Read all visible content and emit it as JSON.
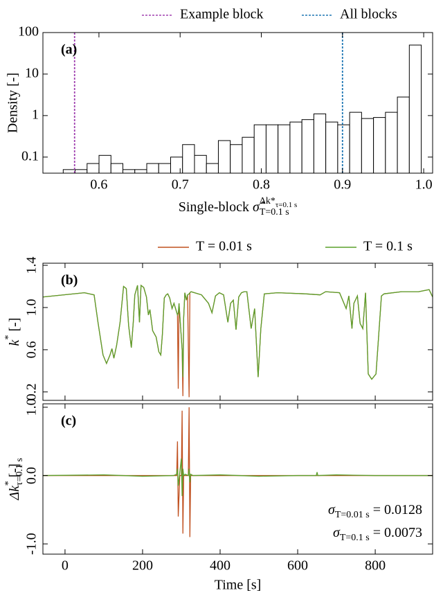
{
  "chart_data": [
    {
      "type": "histogram",
      "panel_label": "(a)",
      "xlabel": {
        "text": "Single-block",
        "symbol": "σ̂",
        "superscript": "Δk*",
        "superscript_subscript": "τ=0.1 s",
        "subscript": "T=0.1 s"
      },
      "ylabel": "Density [-]",
      "bins": [
        0.556,
        0.5707,
        0.5854,
        0.6001,
        0.6148,
        0.6295,
        0.6442,
        0.6589,
        0.6736,
        0.6883,
        0.703,
        0.7177,
        0.7324,
        0.7471,
        0.7618,
        0.7765,
        0.7912,
        0.8059,
        0.8206,
        0.8353,
        0.85,
        0.8647,
        0.8794,
        0.8941,
        0.9088,
        0.9235,
        0.9382,
        0.9529,
        0.9676,
        0.9823,
        0.997
      ],
      "values": [
        0.05,
        0.05,
        0.07,
        0.11,
        0.07,
        0.05,
        0.05,
        0.07,
        0.07,
        0.1,
        0.2,
        0.11,
        0.07,
        0.25,
        0.2,
        0.3,
        0.6,
        0.6,
        0.6,
        0.7,
        0.8,
        1.1,
        0.7,
        0.6,
        1.2,
        0.85,
        0.9,
        1.2,
        2.8,
        50
      ],
      "color": "#ffffff",
      "edgecolor": "#000000",
      "xlim": [
        0.531,
        1.011
      ],
      "xticks": [
        0.6,
        0.7,
        0.8,
        0.9,
        {
          "value": 1,
          "label": "1.0"
        }
      ],
      "ylim": [
        0.041,
        100
      ],
      "yscale": "log",
      "yticks": [
        0.1,
        1,
        10,
        100
      ],
      "vlines": [
        {
          "name": "Example block",
          "color": "#a040b0",
          "x": 0.57
        },
        {
          "name": "All blocks",
          "color": "#1f77b4",
          "x": 0.9
        }
      ],
      "legend": "top"
    },
    {
      "type": "line",
      "panel_label": "(b)",
      "ylabel": {
        "text": "k",
        "superscript": "*",
        "unit": "[-]"
      },
      "x": [
        -57,
        50,
        75,
        85,
        98,
        107,
        116,
        121,
        126,
        133,
        142,
        151,
        158,
        164,
        171,
        176,
        180,
        187,
        192,
        196,
        203,
        210,
        215,
        219,
        226,
        235,
        242,
        247,
        251,
        256,
        261,
        265,
        270,
        276,
        281,
        290,
        292,
        294,
        302,
        304,
        306,
        309,
        313,
        316,
        320,
        322,
        325,
        352,
        370,
        379,
        388,
        398,
        409,
        420,
        427,
        434,
        441,
        448,
        455,
        462,
        469,
        480,
        489,
        498,
        505,
        514,
        548,
        619,
        658,
        672,
        708,
        725,
        732,
        740,
        745,
        754,
        761,
        768,
        775,
        782,
        791,
        802,
        809,
        816,
        823,
        868,
        912,
        939,
        948
      ],
      "series": [
        {
          "name": "T = 0.01 s",
          "color": "#c0501f",
          "values": [
            1.1,
            1.14,
            1.12,
            0.86,
            0.55,
            0.47,
            0.55,
            0.61,
            0.52,
            0.64,
            0.86,
            1.2,
            1.18,
            0.83,
            0.62,
            0.86,
            1.12,
            1.21,
            0.86,
            1.21,
            1.19,
            1.1,
            0.93,
            0.98,
            0.78,
            0.72,
            0.58,
            0.55,
            0.74,
            1.09,
            1.12,
            1.13,
            1.09,
            0.99,
            1.04,
            0.93,
            0.23,
            1.04,
            0.6,
            0.16,
            0.9,
            1.14,
            1.07,
            1.12,
            0.15,
            1.14,
            1.15,
            1.12,
            1.04,
            0.95,
            1.11,
            1.14,
            1.12,
            0.86,
            1.04,
            1.07,
            0.79,
            1.1,
            1.14,
            1.15,
            1.15,
            0.8,
            0.99,
            0.34,
            0.8,
            1.13,
            1.14,
            1.13,
            1.12,
            1.15,
            1.14,
            0.99,
            1.11,
            0.8,
            1.04,
            1.11,
            0.85,
            0.8,
            1.14,
            0.37,
            0.32,
            0.37,
            0.74,
            1.11,
            1.13,
            1.15,
            1.15,
            1.17,
            1.1
          ]
        },
        {
          "name": "T = 0.1 s",
          "color": "#5aa02c",
          "values": [
            1.1,
            1.14,
            1.12,
            0.86,
            0.55,
            0.47,
            0.55,
            0.61,
            0.52,
            0.64,
            0.86,
            1.2,
            1.18,
            0.83,
            0.62,
            0.86,
            1.12,
            1.21,
            0.86,
            1.21,
            1.19,
            1.1,
            0.93,
            0.98,
            0.78,
            0.72,
            0.58,
            0.55,
            0.74,
            1.09,
            1.12,
            1.13,
            1.09,
            0.99,
            1.04,
            0.93,
            0.95,
            1.04,
            0.6,
            0.34,
            0.9,
            1.14,
            1.07,
            1.12,
            1.13,
            1.14,
            1.15,
            1.12,
            1.04,
            0.95,
            1.11,
            1.14,
            1.12,
            0.86,
            1.04,
            1.07,
            0.79,
            1.1,
            1.14,
            1.15,
            1.15,
            0.8,
            0.99,
            0.34,
            0.8,
            1.13,
            1.14,
            1.13,
            1.12,
            1.15,
            1.14,
            0.99,
            1.11,
            0.8,
            1.04,
            1.11,
            0.85,
            0.8,
            1.14,
            0.37,
            0.32,
            0.37,
            0.74,
            1.11,
            1.13,
            1.15,
            1.15,
            1.17,
            1.1
          ]
        }
      ],
      "xlim": [
        -57,
        948
      ],
      "xticks": [
        0,
        200,
        400,
        600,
        800
      ],
      "ylim": [
        0.12,
        1.42
      ],
      "yticks": [
        0.2,
        0.6,
        {
          "value": 1,
          "label": "1.0"
        },
        1.4
      ],
      "legend": "top"
    },
    {
      "type": "line",
      "panel_label": "(c)",
      "ylabel": {
        "text": "Δk",
        "superscript": "*",
        "subscript": "τ=0.1 s",
        "unit": "[-]"
      },
      "xlabel": "Time [s]",
      "x": [
        -57,
        100,
        200,
        280,
        288,
        290,
        292,
        296,
        300,
        302,
        304,
        306,
        310,
        318,
        320,
        322,
        324,
        330,
        400,
        500,
        600,
        648,
        650,
        652,
        700,
        800,
        948
      ],
      "series": [
        {
          "color": "#c0501f",
          "values": [
            0,
            0,
            0,
            0,
            0,
            0.5,
            -0.6,
            0,
            0,
            0.95,
            -0.85,
            0,
            0,
            0,
            1.0,
            -0.9,
            0,
            0,
            0,
            0,
            0,
            0,
            0,
            0,
            0,
            0,
            0
          ]
        },
        {
          "color": "#5aa02c",
          "values": [
            0,
            0.01,
            -0.01,
            0,
            0.02,
            0.1,
            -0.15,
            0.05,
            0.25,
            -0.3,
            0.1,
            0,
            0.02,
            0,
            0.1,
            -0.1,
            0.02,
            0,
            0.01,
            -0.01,
            0,
            0,
            0.05,
            0,
            0.01,
            0,
            0
          ]
        }
      ],
      "annotations": [
        {
          "symbol": "σ",
          "subscript": "T=0.01 s",
          "text": "= 0.0128"
        },
        {
          "symbol": "σ",
          "subscript": "T=0.1 s",
          "text": "= 0.0073"
        }
      ],
      "xlim": [
        -57,
        948
      ],
      "xticks": [
        0,
        200,
        400,
        600,
        800
      ],
      "ylim": [
        -1.15,
        1.05
      ],
      "yticks": [
        {
          "value": 1,
          "label": "1.0"
        },
        {
          "value": 0,
          "label": "0.0"
        },
        {
          "value": -1,
          "label": "-1.0"
        }
      ]
    }
  ]
}
